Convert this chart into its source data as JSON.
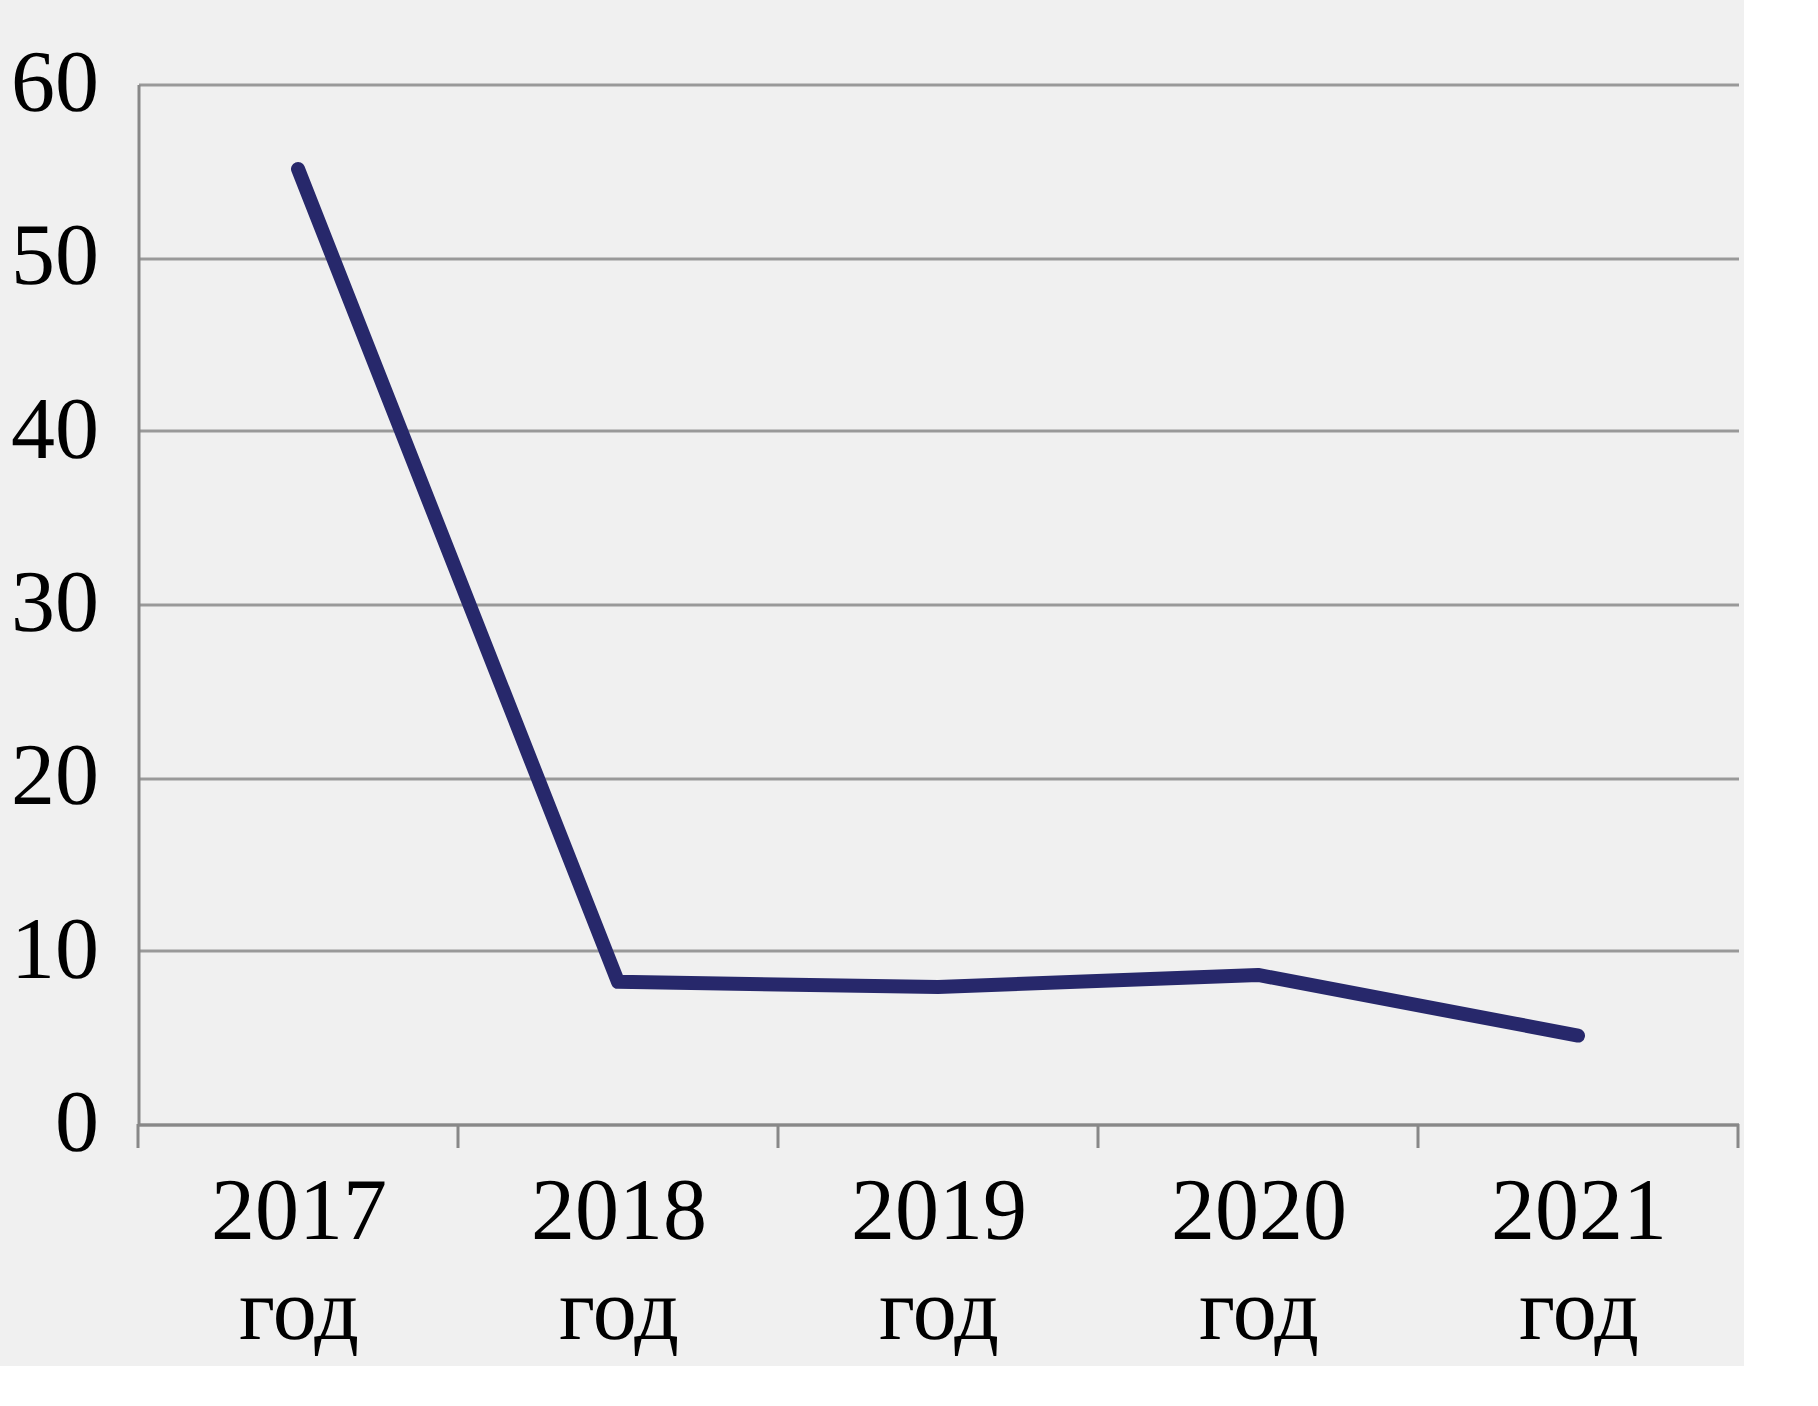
{
  "chart_data": {
    "type": "line",
    "categories": [
      "2017\nгод",
      "2018\nгод",
      "2019\nгод",
      "2020\nгод",
      "2021\nгод"
    ],
    "series": [
      {
        "color": "#27286b",
        "values": [
          55.1,
          8.2,
          7.9,
          8.6,
          5.1
        ]
      }
    ],
    "ylim": [
      0,
      60
    ],
    "yticks": [
      0,
      10,
      20,
      30,
      40,
      50,
      60
    ],
    "grid": "y",
    "marker": "none",
    "line_style": "solid"
  }
}
